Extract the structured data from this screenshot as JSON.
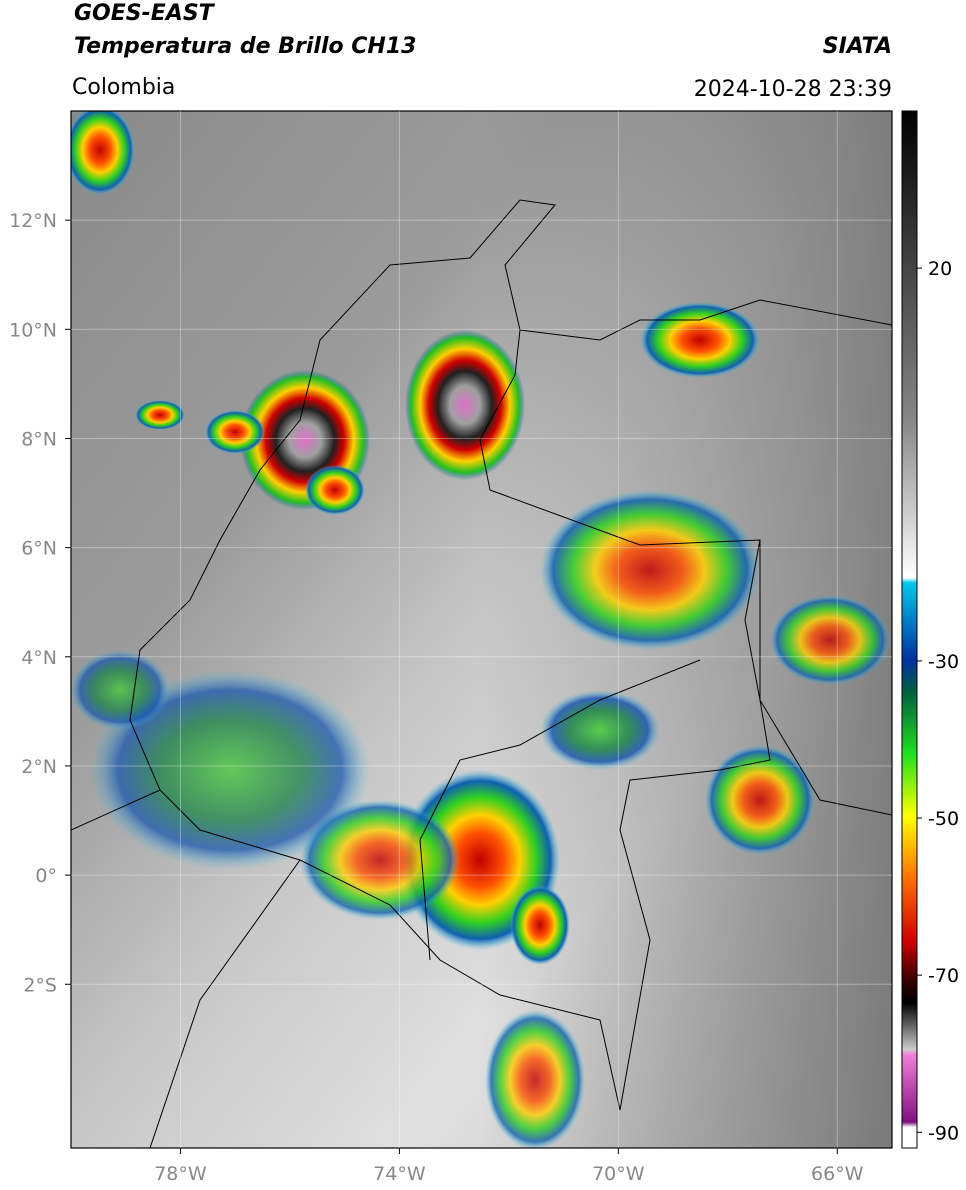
{
  "chart_data": {
    "type": "map",
    "title": "GOES-EAST",
    "subtitle": "Temperatura de Brillo CH13",
    "region": "Colombia",
    "source": "SIATA",
    "timestamp": "2024-10-28 23:39",
    "xlim": [
      -80,
      -65
    ],
    "ylim": [
      -5,
      14
    ],
    "xticks": [
      {
        "value": -78,
        "label": "78°W"
      },
      {
        "value": -74,
        "label": "74°W"
      },
      {
        "value": -70,
        "label": "70°W"
      },
      {
        "value": -66,
        "label": "66°W"
      }
    ],
    "yticks": [
      {
        "value": 12,
        "label": "12°N"
      },
      {
        "value": 10,
        "label": "10°N"
      },
      {
        "value": 8,
        "label": "8°N"
      },
      {
        "value": 6,
        "label": "6°N"
      },
      {
        "value": 4,
        "label": "4°N"
      },
      {
        "value": 2,
        "label": "2°N"
      },
      {
        "value": 0,
        "label": "0°"
      },
      {
        "value": -2,
        "label": "2°S"
      }
    ],
    "grid": true,
    "colorbar": {
      "lim": [
        -92,
        40
      ],
      "ticks": [
        20,
        -30,
        -50,
        -70,
        -90
      ]
    }
  }
}
